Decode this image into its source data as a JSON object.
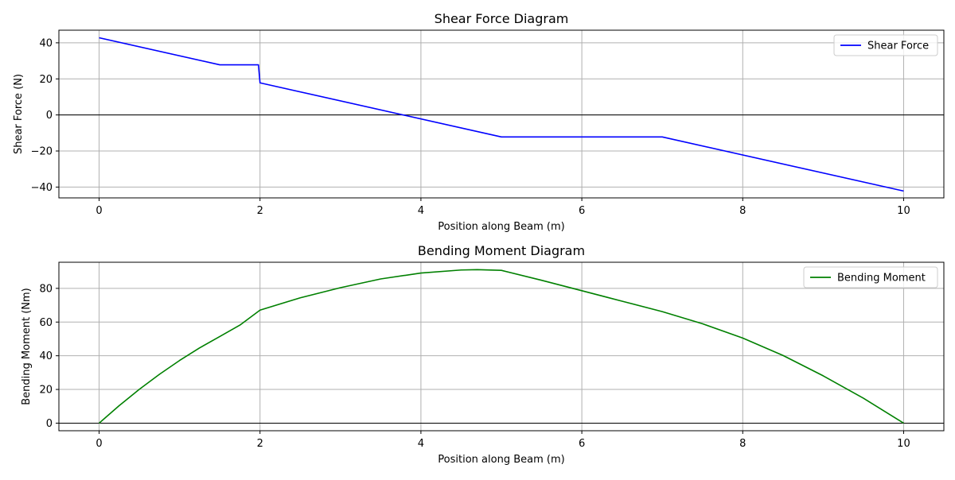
{
  "chart_data": [
    {
      "type": "line",
      "title": "Shear Force Diagram",
      "xlabel": "Position along Beam (m)",
      "ylabel": "Shear Force (N)",
      "xlim": [
        -0.5,
        10.5
      ],
      "ylim": [
        -46,
        47
      ],
      "xticks": [
        0,
        2,
        4,
        6,
        8,
        10
      ],
      "yticks": [
        -40,
        -20,
        0,
        20,
        40
      ],
      "xtick_labels": [
        "0",
        "2",
        "4",
        "6",
        "8",
        "10"
      ],
      "ytick_labels": [
        "−40",
        "−20",
        "0",
        "20",
        "40"
      ],
      "grid": true,
      "zero_line": true,
      "legend_position": "upper right",
      "series": [
        {
          "name": "Shear Force",
          "color": "#0000ff",
          "x": [
            0,
            1.5,
            1.98,
            2.0,
            5.0,
            7.0,
            10.0
          ],
          "y": [
            42.8,
            27.8,
            27.8,
            17.8,
            -12.2,
            -12.2,
            -42.2
          ]
        }
      ]
    },
    {
      "type": "line",
      "title": "Bending Moment Diagram",
      "xlabel": "Position along Beam (m)",
      "ylabel": "Bending Moment (Nm)",
      "xlim": [
        -0.5,
        10.5
      ],
      "ylim": [
        -4.5,
        95.5
      ],
      "xticks": [
        0,
        2,
        4,
        6,
        8,
        10
      ],
      "yticks": [
        0,
        20,
        40,
        60,
        80
      ],
      "xtick_labels": [
        "0",
        "2",
        "4",
        "6",
        "8",
        "10"
      ],
      "ytick_labels": [
        "0",
        "20",
        "40",
        "60",
        "80"
      ],
      "grid": true,
      "zero_line": true,
      "legend_position": "upper right",
      "series": [
        {
          "name": "Bending Moment",
          "color": "#008000",
          "x": [
            0,
            0.25,
            0.5,
            0.75,
            1.0,
            1.25,
            1.5,
            1.75,
            2.0,
            2.5,
            3.0,
            3.5,
            4.0,
            4.5,
            4.7,
            5.0,
            5.5,
            6.0,
            6.5,
            7.0,
            7.5,
            8.0,
            8.5,
            9.0,
            9.5,
            10.0
          ],
          "y": [
            0,
            10.4,
            20.1,
            29.0,
            37.2,
            44.7,
            51.4,
            58.2,
            67.1,
            74.4,
            80.4,
            85.6,
            89.1,
            90.9,
            91.1,
            90.7,
            84.8,
            78.6,
            72.4,
            66.2,
            59.0,
            50.5,
            40.2,
            28.1,
            14.8,
            0
          ]
        }
      ]
    }
  ]
}
